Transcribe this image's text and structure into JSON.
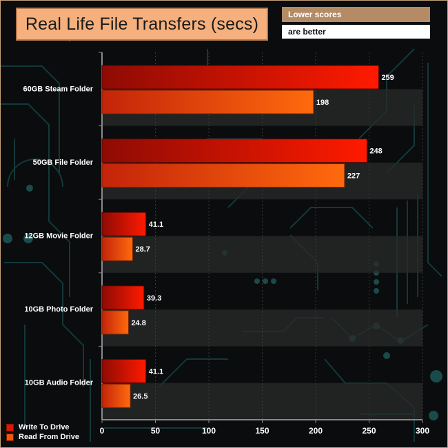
{
  "header": {
    "title": "Real Life File Transfers (secs)",
    "note_line1": "Lower scores",
    "note_line2": "are better"
  },
  "legend": {
    "write_label": "Write To  Drive",
    "read_label": "Read From  Drive"
  },
  "colors": {
    "write_dark": "#8e0b04",
    "write_light": "#ff1a00",
    "read_dark": "#c4240a",
    "read_light": "#ff6a0d",
    "band": "#2a2a2a",
    "axis": "#8a8a8a"
  },
  "chart_data": {
    "type": "bar",
    "orientation": "horizontal",
    "title": "Real Life File Transfers (secs)",
    "categories": [
      "60GB Steam Folder",
      "50GB File Folder",
      "12GB Movie Folder",
      "10GB Photo Folder",
      "10GB Audio Folder"
    ],
    "series": [
      {
        "name": "Write To  Drive",
        "values": [
          259,
          248,
          41.1,
          39.3,
          41.1
        ]
      },
      {
        "name": "Read From  Drive",
        "values": [
          198,
          227,
          28.7,
          24.8,
          26.5
        ]
      }
    ],
    "value_labels": [
      [
        "259",
        "248",
        "41.1",
        "39.3",
        "41.1"
      ],
      [
        "198",
        "227",
        "28.7",
        "24.8",
        "26.5"
      ]
    ],
    "xlim": [
      0,
      300
    ],
    "xticks": [
      0,
      50,
      100,
      150,
      200,
      250,
      300
    ],
    "xlabel": "",
    "ylabel": "",
    "legend_position": "bottom-left"
  }
}
